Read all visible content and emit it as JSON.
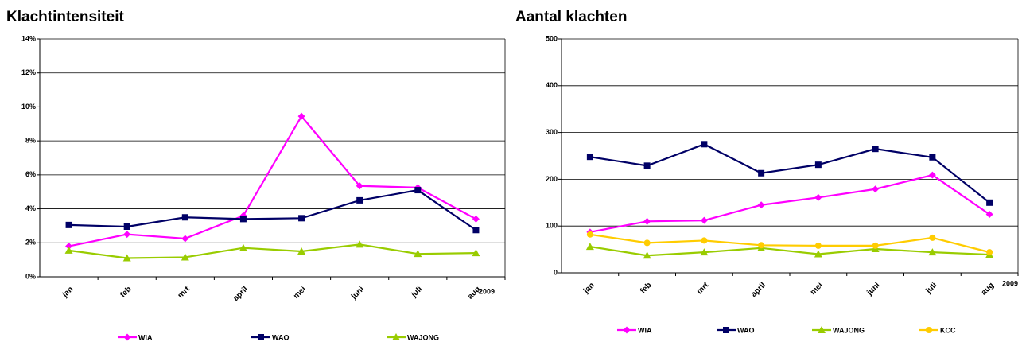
{
  "chart_data": [
    {
      "type": "line",
      "title": "Klachtintensiteit",
      "annotation": "2009",
      "categories": [
        "jan",
        "feb",
        "mrt",
        "april",
        "mei",
        "juni",
        "juli",
        "aug"
      ],
      "ylim": [
        0,
        14
      ],
      "yticks": [
        {
          "value": 0,
          "label": "0%"
        },
        {
          "value": 2,
          "label": "2%"
        },
        {
          "value": 4,
          "label": "4%"
        },
        {
          "value": 6,
          "label": "6%"
        },
        {
          "value": 8,
          "label": "8%"
        },
        {
          "value": 10,
          "label": "10%"
        },
        {
          "value": 12,
          "label": "12%"
        },
        {
          "value": 14,
          "label": "14%"
        }
      ],
      "grid": true,
      "series": [
        {
          "name": "WIA",
          "color": "#ff00ff",
          "marker": "diamond",
          "values": [
            1.8,
            2.5,
            2.25,
            3.6,
            9.45,
            5.35,
            5.25,
            3.4
          ]
        },
        {
          "name": "WAO",
          "color": "#000066",
          "marker": "square",
          "values": [
            3.05,
            2.95,
            3.5,
            3.4,
            3.45,
            4.5,
            5.1,
            2.75
          ]
        },
        {
          "name": "WAJONG",
          "color": "#99cc00",
          "marker": "triangle",
          "values": [
            1.55,
            1.1,
            1.15,
            1.7,
            1.5,
            1.9,
            1.35,
            1.4
          ]
        }
      ]
    },
    {
      "type": "line",
      "title": "Aantal klachten",
      "annotation": "2009",
      "categories": [
        "jan",
        "feb",
        "mrt",
        "april",
        "mei",
        "juni",
        "juli",
        "aug"
      ],
      "ylim": [
        0,
        500
      ],
      "yticks": [
        0,
        100,
        200,
        300,
        400,
        500
      ],
      "grid": true,
      "series": [
        {
          "name": "WIA",
          "color": "#ff00ff",
          "marker": "diamond",
          "values": [
            87,
            110,
            112,
            145,
            161,
            179,
            209,
            125
          ]
        },
        {
          "name": "WAO",
          "color": "#000066",
          "marker": "square",
          "values": [
            248,
            229,
            275,
            213,
            231,
            265,
            247,
            150
          ]
        },
        {
          "name": "WAJONG",
          "color": "#99cc00",
          "marker": "triangle",
          "values": [
            56,
            37,
            44,
            53,
            40,
            51,
            44,
            39
          ]
        },
        {
          "name": "KCC",
          "color": "#ffcc00",
          "marker": "circle",
          "values": [
            82,
            64,
            69,
            59,
            58,
            58,
            75,
            44
          ]
        }
      ]
    }
  ]
}
